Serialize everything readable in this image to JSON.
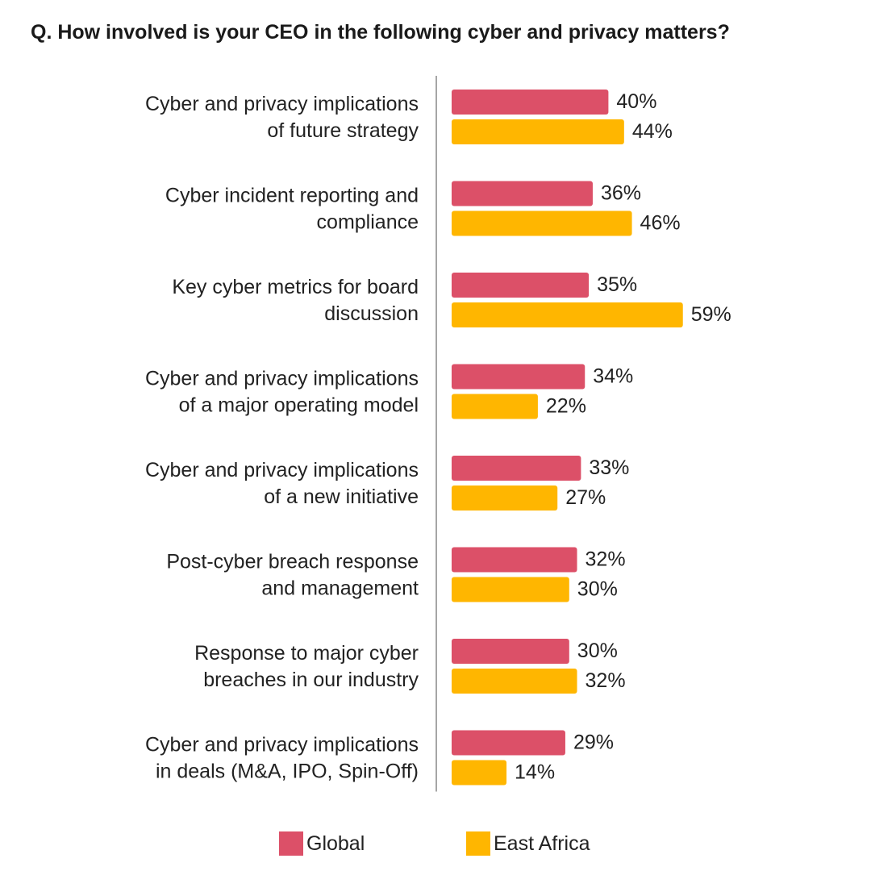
{
  "title": "Q. How involved is your CEO in the following cyber and privacy matters?",
  "colors": {
    "global": "#dc5068",
    "east_africa": "#ffb600",
    "axis": "#888888",
    "text": "#222222"
  },
  "legend": {
    "global": "Global",
    "east_africa": "East Africa"
  },
  "chart_data": {
    "type": "bar",
    "orientation": "horizontal",
    "title": "Q. How involved is your CEO in the following cyber and privacy matters?",
    "categories": [
      [
        "Cyber and privacy implications",
        "of future strategy"
      ],
      [
        "Cyber incident reporting and",
        "compliance"
      ],
      [
        "Key cyber metrics for board",
        "discussion"
      ],
      [
        "Cyber and privacy implications",
        "of a major operating model"
      ],
      [
        "Cyber and privacy implications",
        "of a new initiative"
      ],
      [
        "Post-cyber breach response",
        "and management"
      ],
      [
        "Response to major cyber",
        "breaches in our industry"
      ],
      [
        "Cyber and privacy implications",
        "in deals (M&A, IPO, Spin-Off)"
      ]
    ],
    "series": [
      {
        "name": "Global",
        "values": [
          40,
          36,
          35,
          34,
          33,
          32,
          30,
          29
        ],
        "labels": [
          "40%",
          "36%",
          "35%",
          "34%",
          "33%",
          "32%",
          "30%",
          "29%"
        ]
      },
      {
        "name": "East Africa",
        "values": [
          44,
          46,
          59,
          22,
          27,
          30,
          32,
          14
        ],
        "labels": [
          "44%",
          "46%",
          "59%",
          "22%",
          "27%",
          "30%",
          "32%",
          "14%"
        ]
      }
    ],
    "unit": "%",
    "grid": false,
    "legend_position": "bottom"
  }
}
